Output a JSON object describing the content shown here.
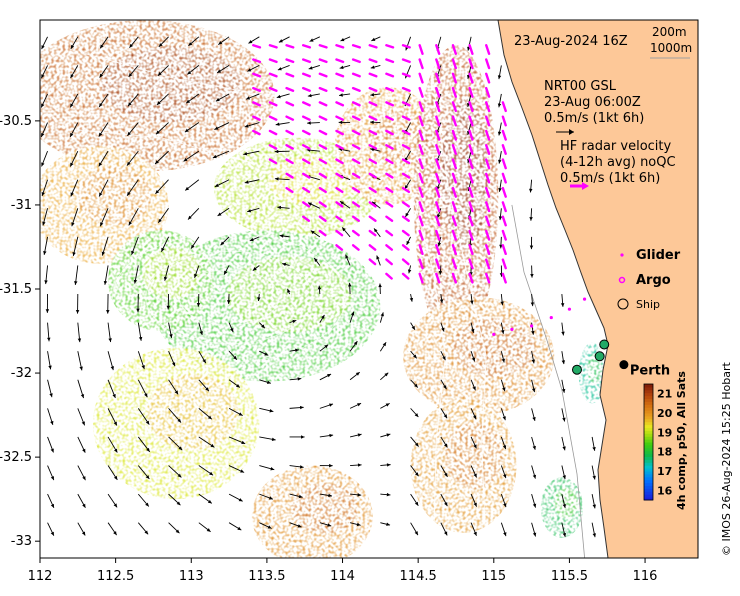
{
  "map": {
    "timestamp": "23-Aug-2024 16Z",
    "bathymetry_legend": [
      "200m",
      "1000m"
    ],
    "current_model": [
      "NRT00 GSL",
      "23-Aug 06:00Z",
      "0.5m/s (1kt 6h)"
    ],
    "hf_radar": [
      "HF radar velocity",
      "(4-12h avg) noQC",
      "0.5m/s (1kt 6h)"
    ],
    "legend": {
      "glider": "Glider",
      "argo": "Argo",
      "ship": "Ship"
    },
    "city": "Perth",
    "city_lonlat": [
      115.86,
      -31.95
    ],
    "credit": "© IMOS 26-Aug-2024 15:25 Hobart",
    "colorbar_title": "4h comp, p50, All Sats",
    "colorbar_ticks": [
      "21",
      "20",
      "19",
      "18",
      "17",
      "16"
    ],
    "colorbar_range": [
      15.5,
      21.5
    ],
    "colors": {
      "land": "#fdc898",
      "land_edge": "#333333",
      "radar_arrow": "#ff00ff",
      "arrow": "#000000",
      "contour": "#ffffff",
      "coast_line": "#999999"
    },
    "x_axis": {
      "ticks": [
        "112",
        "112.5",
        "113",
        "113.5",
        "114",
        "114.5",
        "115",
        "115.5",
        "116"
      ],
      "range": [
        112,
        116.35
      ]
    },
    "y_axis": {
      "ticks": [
        "-30.5",
        "-31",
        "-31.5",
        "-32",
        "-32.5",
        "-33"
      ],
      "range": [
        -33.1,
        -29.9
      ]
    },
    "sst_patches": [
      {
        "name": "nw-warm",
        "lon": 112.7,
        "lat": -30.35,
        "rx": 0.85,
        "ry": 0.45,
        "temp": 20.7
      },
      {
        "name": "west-warm",
        "lon": 112.4,
        "lat": -31.0,
        "rx": 0.45,
        "ry": 0.35,
        "temp": 19.8
      },
      {
        "name": "central-north",
        "lon": 113.7,
        "lat": -30.9,
        "rx": 0.55,
        "ry": 0.3,
        "temp": 18.9
      },
      {
        "name": "north-shelf",
        "lon": 114.3,
        "lat": -30.65,
        "rx": 0.35,
        "ry": 0.35,
        "temp": 20.0
      },
      {
        "name": "eddy-core",
        "lon": 113.5,
        "lat": -31.6,
        "rx": 0.75,
        "ry": 0.45,
        "temp": 18.2
      },
      {
        "name": "eddy-west",
        "lon": 112.8,
        "lat": -31.45,
        "rx": 0.35,
        "ry": 0.3,
        "temp": 18.4
      },
      {
        "name": "leeuwin-current",
        "lon": 114.75,
        "lat": -30.95,
        "rx": 0.28,
        "ry": 0.9,
        "temp": 20.9
      },
      {
        "name": "shelf-mid",
        "lon": 114.9,
        "lat": -31.9,
        "rx": 0.5,
        "ry": 0.35,
        "temp": 20.2
      },
      {
        "name": "south-warm",
        "lon": 113.8,
        "lat": -32.85,
        "rx": 0.4,
        "ry": 0.3,
        "temp": 20.1
      },
      {
        "name": "sw-yellow",
        "lon": 112.9,
        "lat": -32.3,
        "rx": 0.55,
        "ry": 0.45,
        "temp": 19.2
      },
      {
        "name": "se-warm",
        "lon": 114.8,
        "lat": -32.55,
        "rx": 0.35,
        "ry": 0.4,
        "temp": 20.0
      },
      {
        "name": "coastal-cool",
        "lon": 115.65,
        "lat": -32.0,
        "rx": 0.09,
        "ry": 0.18,
        "temp": 17.5
      },
      {
        "name": "south-cool",
        "lon": 115.45,
        "lat": -32.8,
        "rx": 0.14,
        "ry": 0.18,
        "temp": 17.8
      }
    ],
    "ship_position": [
      115.55,
      -31.98
    ],
    "argo_position": [
      115.72,
      -31.8
    ]
  }
}
